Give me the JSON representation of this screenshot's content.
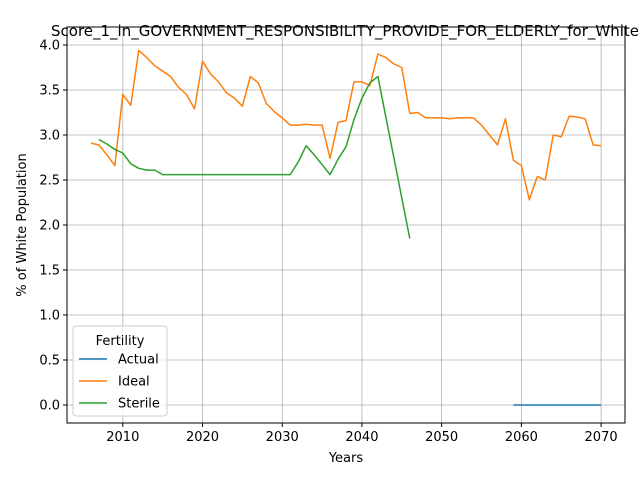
{
  "chart_data": {
    "type": "line",
    "title": "Score_1_in_GOVERNMENT_RESPONSIBILITY_PROVIDE_FOR_ELDERLY_for_White",
    "xlabel": "Years",
    "ylabel": "% of White Population",
    "xlim": [
      2003,
      2073
    ],
    "ylim": [
      -0.2,
      4.2
    ],
    "xticks": [
      2010,
      2020,
      2030,
      2040,
      2050,
      2060,
      2070
    ],
    "yticks": [
      0.0,
      0.5,
      1.0,
      1.5,
      2.0,
      2.5,
      3.0,
      3.5,
      4.0
    ],
    "grid": true,
    "legend": {
      "title": "Fertility",
      "placement": "lower-left"
    },
    "series": [
      {
        "name": "Actual",
        "color": "#1f77b4",
        "x": [
          2059,
          2060,
          2061,
          2062,
          2063,
          2064,
          2065,
          2066,
          2067,
          2068,
          2069,
          2070
        ],
        "y": [
          0.0,
          0.0,
          0.0,
          0.0,
          0.0,
          0.0,
          0.0,
          0.0,
          0.0,
          0.0,
          0.0,
          0.0
        ]
      },
      {
        "name": "Ideal",
        "color": "#ff7f0e",
        "x": [
          2006,
          2007,
          2008,
          2009,
          2010,
          2011,
          2012,
          2013,
          2014,
          2015,
          2016,
          2017,
          2018,
          2019,
          2020,
          2021,
          2022,
          2023,
          2024,
          2025,
          2026,
          2027,
          2028,
          2029,
          2030,
          2031,
          2032,
          2033,
          2034,
          2035,
          2036,
          2037,
          2038,
          2039,
          2040,
          2041,
          2042,
          2043,
          2044,
          2045,
          2046,
          2047,
          2048,
          2049,
          2050,
          2051,
          2052,
          2053,
          2054,
          2055,
          2056,
          2057,
          2058,
          2059,
          2060,
          2061,
          2062,
          2063,
          2064,
          2065,
          2066,
          2067,
          2068,
          2069,
          2070
        ],
        "y": [
          2.91,
          2.89,
          2.78,
          2.66,
          3.45,
          3.33,
          3.94,
          3.86,
          3.77,
          3.71,
          3.65,
          3.53,
          3.45,
          3.29,
          3.82,
          3.68,
          3.59,
          3.47,
          3.41,
          3.32,
          3.65,
          3.58,
          3.35,
          3.26,
          3.19,
          3.11,
          3.11,
          3.12,
          3.11,
          3.11,
          2.74,
          3.14,
          3.16,
          3.59,
          3.59,
          3.55,
          3.9,
          3.86,
          3.79,
          3.75,
          3.24,
          3.25,
          3.19,
          3.19,
          3.19,
          3.18,
          3.19,
          3.19,
          3.19,
          3.11,
          3.0,
          2.89,
          3.18,
          2.72,
          2.66,
          2.28,
          2.54,
          2.5,
          3.0,
          2.98,
          3.21,
          3.2,
          3.18,
          2.89,
          2.88
        ]
      },
      {
        "name": "Sterile",
        "color": "#2ca02c",
        "x": [
          2007,
          2008,
          2009,
          2010,
          2011,
          2012,
          2013,
          2014,
          2015,
          2016,
          2017,
          2018,
          2019,
          2020,
          2021,
          2022,
          2023,
          2024,
          2025,
          2026,
          2027,
          2028,
          2029,
          2030,
          2031,
          2032,
          2033,
          2034,
          2035,
          2036,
          2037,
          2038,
          2039,
          2040,
          2041,
          2042,
          2043,
          2044,
          2045,
          2046
        ],
        "y": [
          2.95,
          2.9,
          2.84,
          2.8,
          2.68,
          2.63,
          2.61,
          2.61,
          2.56,
          2.56,
          2.56,
          2.56,
          2.56,
          2.56,
          2.56,
          2.56,
          2.56,
          2.56,
          2.56,
          2.56,
          2.56,
          2.56,
          2.56,
          2.56,
          2.56,
          2.7,
          2.88,
          2.78,
          2.67,
          2.56,
          2.73,
          2.87,
          3.17,
          3.41,
          3.58,
          3.65,
          3.2,
          2.75,
          2.3,
          1.85
        ]
      }
    ]
  }
}
